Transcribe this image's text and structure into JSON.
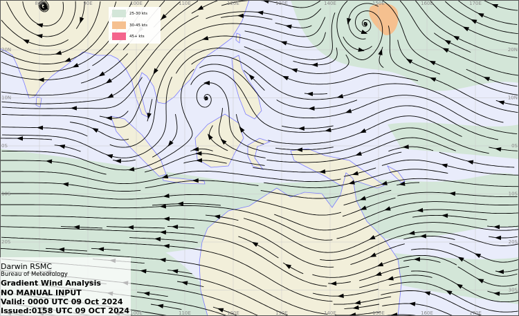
{
  "colors": {
    "ocean": "#e9ecfb",
    "land": "#f2efda",
    "coast": "#7b7bff",
    "band_25_30": "#d3e6d8",
    "band_30_45": "#f5c08f",
    "band_45_plus": "#f4658c",
    "streamline": "#000000"
  },
  "legend": {
    "items": [
      {
        "label": "25-30 kts",
        "color": "#d3e6d8"
      },
      {
        "label": "30-45 kts",
        "color": "#f5c08f"
      },
      {
        "label": "45+ kts",
        "color": "#f4658c"
      }
    ]
  },
  "graticule": {
    "top_labels": [
      "80E",
      "90E",
      "100E",
      "110E",
      "120E",
      "130E",
      "140E",
      "150E",
      "160E",
      "170E"
    ],
    "bottom_labels": [
      "100E",
      "110E",
      "120E",
      "130E",
      "140E",
      "150E",
      "160E",
      "170E"
    ],
    "left_labels": [
      "20N",
      "10N",
      "0S",
      "10S",
      "20S"
    ],
    "right_labels": [
      "20N",
      "10N",
      "0S",
      "10S",
      "20S",
      "30S"
    ]
  },
  "info": {
    "centre": "Darwin RSMC",
    "agency": "Bureau of Meteorology",
    "product": "Gradient Wind Analysis",
    "note": "NO MANUAL INPUT",
    "valid": "Valid:   0000 UTC 09 Oct 2024",
    "issued": "Issued:0158 UTC 09 OCT 2024"
  }
}
